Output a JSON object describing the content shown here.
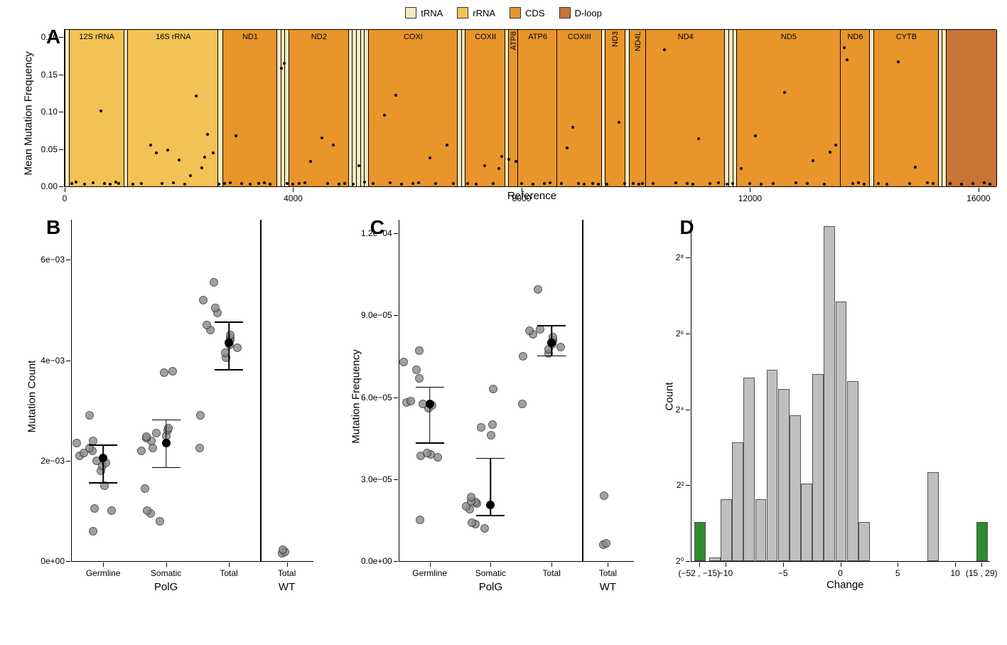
{
  "colors": {
    "tRNA": "#f9e9c3",
    "rRNA": "#f2c255",
    "CDS": "#e8952c",
    "Dloop": "#c77435",
    "gray_bar": "#bfbfbf",
    "green_bar": "#2e8b2e",
    "point_fill": "#8a8a8a"
  },
  "legend": [
    {
      "label": "tRNA",
      "color": "#f9e9c3"
    },
    {
      "label": "rRNA",
      "color": "#f2c255"
    },
    {
      "label": "CDS",
      "color": "#e8952c"
    },
    {
      "label": "D-loop",
      "color": "#c77435"
    }
  ],
  "panelA": {
    "label": "A",
    "ylab": "Mean Mutation Frequency",
    "xlab": "Reference",
    "xlim": [
      0,
      16300
    ],
    "ylim": [
      0,
      0.21
    ],
    "xticks": [
      0,
      4000,
      8000,
      12000,
      16000
    ],
    "yticks": [
      0.0,
      0.05,
      0.1,
      0.15,
      0.2
    ],
    "regions": [
      {
        "start": 0,
        "end": 70,
        "type": "tRNA",
        "label": ""
      },
      {
        "start": 70,
        "end": 1030,
        "type": "rRNA",
        "label": "12S rRNA"
      },
      {
        "start": 1030,
        "end": 1100,
        "type": "tRNA",
        "label": ""
      },
      {
        "start": 1100,
        "end": 2680,
        "type": "rRNA",
        "label": "16S rRNA"
      },
      {
        "start": 2680,
        "end": 2760,
        "type": "tRNA",
        "label": ""
      },
      {
        "start": 2760,
        "end": 3710,
        "type": "CDS",
        "label": "ND1"
      },
      {
        "start": 3710,
        "end": 3780,
        "type": "tRNA",
        "label": ""
      },
      {
        "start": 3780,
        "end": 3850,
        "type": "tRNA",
        "label": ""
      },
      {
        "start": 3850,
        "end": 3920,
        "type": "tRNA",
        "label": ""
      },
      {
        "start": 3920,
        "end": 4960,
        "type": "CDS",
        "label": "ND2"
      },
      {
        "start": 4960,
        "end": 5030,
        "type": "tRNA",
        "label": ""
      },
      {
        "start": 5030,
        "end": 5100,
        "type": "tRNA",
        "label": ""
      },
      {
        "start": 5100,
        "end": 5170,
        "type": "tRNA",
        "label": ""
      },
      {
        "start": 5170,
        "end": 5240,
        "type": "tRNA",
        "label": ""
      },
      {
        "start": 5240,
        "end": 5310,
        "type": "tRNA",
        "label": ""
      },
      {
        "start": 5310,
        "end": 6870,
        "type": "CDS",
        "label": "COXI"
      },
      {
        "start": 6870,
        "end": 6940,
        "type": "tRNA",
        "label": ""
      },
      {
        "start": 6940,
        "end": 7010,
        "type": "tRNA",
        "label": ""
      },
      {
        "start": 7010,
        "end": 7700,
        "type": "CDS",
        "label": "COXII"
      },
      {
        "start": 7700,
        "end": 7770,
        "type": "tRNA",
        "label": ""
      },
      {
        "start": 7770,
        "end": 7930,
        "type": "CDS",
        "label": "ATP8",
        "vert": true
      },
      {
        "start": 7930,
        "end": 8610,
        "type": "CDS",
        "label": "ATP6"
      },
      {
        "start": 8610,
        "end": 9390,
        "type": "CDS",
        "label": "COXIII"
      },
      {
        "start": 9390,
        "end": 9460,
        "type": "tRNA",
        "label": ""
      },
      {
        "start": 9460,
        "end": 9810,
        "type": "CDS",
        "label": "ND3",
        "vert": true
      },
      {
        "start": 9810,
        "end": 9880,
        "type": "tRNA",
        "label": ""
      },
      {
        "start": 9880,
        "end": 10170,
        "type": "CDS",
        "label": "ND4L",
        "vert": true
      },
      {
        "start": 10170,
        "end": 11550,
        "type": "CDS",
        "label": "ND4"
      },
      {
        "start": 11550,
        "end": 11620,
        "type": "tRNA",
        "label": ""
      },
      {
        "start": 11620,
        "end": 11690,
        "type": "tRNA",
        "label": ""
      },
      {
        "start": 11690,
        "end": 11760,
        "type": "tRNA",
        "label": ""
      },
      {
        "start": 11760,
        "end": 13570,
        "type": "CDS",
        "label": "ND5"
      },
      {
        "start": 13570,
        "end": 14090,
        "type": "CDS",
        "label": "ND6"
      },
      {
        "start": 14090,
        "end": 14160,
        "type": "tRNA",
        "label": ""
      },
      {
        "start": 14160,
        "end": 15290,
        "type": "CDS",
        "label": "CYTB"
      },
      {
        "start": 15290,
        "end": 15360,
        "type": "tRNA",
        "label": ""
      },
      {
        "start": 15360,
        "end": 15430,
        "type": "tRNA",
        "label": ""
      },
      {
        "start": 15430,
        "end": 16300,
        "type": "Dloop",
        "label": ""
      }
    ],
    "points": [
      [
        120,
        0.004
      ],
      [
        200,
        0.006
      ],
      [
        350,
        0.003
      ],
      [
        500,
        0.005
      ],
      [
        630,
        0.101
      ],
      [
        700,
        0.004
      ],
      [
        800,
        0.003
      ],
      [
        900,
        0.006
      ],
      [
        950,
        0.004
      ],
      [
        1200,
        0.003
      ],
      [
        1350,
        0.004
      ],
      [
        1500,
        0.055
      ],
      [
        1600,
        0.045
      ],
      [
        1700,
        0.004
      ],
      [
        1800,
        0.049
      ],
      [
        1900,
        0.005
      ],
      [
        2000,
        0.035
      ],
      [
        2100,
        0.003
      ],
      [
        2200,
        0.014
      ],
      [
        2300,
        0.121
      ],
      [
        2400,
        0.025
      ],
      [
        2450,
        0.039
      ],
      [
        2500,
        0.07
      ],
      [
        2600,
        0.045
      ],
      [
        2700,
        0.003
      ],
      [
        2800,
        0.004
      ],
      [
        2900,
        0.005
      ],
      [
        3000,
        0.068
      ],
      [
        3100,
        0.004
      ],
      [
        3250,
        0.003
      ],
      [
        3400,
        0.004
      ],
      [
        3500,
        0.005
      ],
      [
        3600,
        0.003
      ],
      [
        3800,
        0.158
      ],
      [
        3850,
        0.165
      ],
      [
        3900,
        0.004
      ],
      [
        4000,
        0.003
      ],
      [
        4100,
        0.004
      ],
      [
        4200,
        0.005
      ],
      [
        4300,
        0.033
      ],
      [
        4500,
        0.065
      ],
      [
        4600,
        0.004
      ],
      [
        4700,
        0.055
      ],
      [
        4800,
        0.003
      ],
      [
        4900,
        0.004
      ],
      [
        5050,
        0.003
      ],
      [
        5150,
        0.028
      ],
      [
        5250,
        0.006
      ],
      [
        5400,
        0.004
      ],
      [
        5600,
        0.095
      ],
      [
        5700,
        0.005
      ],
      [
        5800,
        0.122
      ],
      [
        5900,
        0.003
      ],
      [
        6100,
        0.004
      ],
      [
        6200,
        0.005
      ],
      [
        6400,
        0.038
      ],
      [
        6500,
        0.004
      ],
      [
        6700,
        0.055
      ],
      [
        6800,
        0.004
      ],
      [
        7050,
        0.004
      ],
      [
        7200,
        0.003
      ],
      [
        7350,
        0.028
      ],
      [
        7500,
        0.004
      ],
      [
        7600,
        0.024
      ],
      [
        7650,
        0.04
      ],
      [
        7780,
        0.036
      ],
      [
        7900,
        0.033
      ],
      [
        8000,
        0.004
      ],
      [
        8200,
        0.003
      ],
      [
        8400,
        0.004
      ],
      [
        8500,
        0.005
      ],
      [
        8700,
        0.004
      ],
      [
        8800,
        0.052
      ],
      [
        8900,
        0.079
      ],
      [
        9000,
        0.004
      ],
      [
        9100,
        0.003
      ],
      [
        9250,
        0.004
      ],
      [
        9350,
        0.003
      ],
      [
        9500,
        0.003
      ],
      [
        9700,
        0.086
      ],
      [
        9800,
        0.004
      ],
      [
        9950,
        0.004
      ],
      [
        10050,
        0.003
      ],
      [
        10120,
        0.004
      ],
      [
        10300,
        0.004
      ],
      [
        10500,
        0.183
      ],
      [
        10700,
        0.005
      ],
      [
        10900,
        0.004
      ],
      [
        11000,
        0.003
      ],
      [
        11100,
        0.064
      ],
      [
        11300,
        0.004
      ],
      [
        11450,
        0.005
      ],
      [
        11600,
        0.003
      ],
      [
        11700,
        0.004
      ],
      [
        11850,
        0.024
      ],
      [
        12000,
        0.004
      ],
      [
        12100,
        0.068
      ],
      [
        12200,
        0.003
      ],
      [
        12400,
        0.004
      ],
      [
        12600,
        0.126
      ],
      [
        12800,
        0.005
      ],
      [
        13000,
        0.004
      ],
      [
        13100,
        0.034
      ],
      [
        13300,
        0.003
      ],
      [
        13400,
        0.046
      ],
      [
        13500,
        0.055
      ],
      [
        13650,
        0.186
      ],
      [
        13700,
        0.17
      ],
      [
        13800,
        0.004
      ],
      [
        13900,
        0.005
      ],
      [
        14000,
        0.003
      ],
      [
        14250,
        0.004
      ],
      [
        14400,
        0.003
      ],
      [
        14600,
        0.167
      ],
      [
        14800,
        0.004
      ],
      [
        14900,
        0.026
      ],
      [
        15100,
        0.005
      ],
      [
        15200,
        0.004
      ],
      [
        15500,
        0.004
      ],
      [
        15700,
        0.003
      ],
      [
        15900,
        0.004
      ],
      [
        16100,
        0.005
      ],
      [
        16200,
        0.003
      ]
    ]
  },
  "panelB": {
    "label": "B",
    "ylab": "Mutation Count",
    "ylim": [
      0,
      0.0068
    ],
    "yticks": [
      [
        "0e+00",
        0
      ],
      [
        "2e−03",
        0.002
      ],
      [
        "4e−03",
        0.004
      ],
      [
        "6e−03",
        0.006
      ]
    ],
    "facets": [
      {
        "label": "PolG",
        "groups": [
          "Germline",
          "Somatic",
          "Total"
        ]
      },
      {
        "label": "WT",
        "groups": [
          "Total"
        ]
      }
    ],
    "groups": [
      {
        "name": "Germline",
        "x": 0,
        "mean": 0.00205,
        "lo": 0.00155,
        "hi": 0.0023,
        "pts": [
          0.0006,
          0.001,
          0.00105,
          0.0015,
          0.0018,
          0.0019,
          0.00195,
          0.002,
          0.0021,
          0.00215,
          0.0022,
          0.00225,
          0.00235,
          0.0024,
          0.0029
        ]
      },
      {
        "name": "Somatic",
        "x": 1,
        "mean": 0.00235,
        "lo": 0.00185,
        "hi": 0.0028,
        "pts": [
          0.0008,
          0.00095,
          0.001,
          0.00145,
          0.0022,
          0.00225,
          0.0024,
          0.00245,
          0.00248,
          0.0025,
          0.00255,
          0.0026,
          0.00265,
          0.00375,
          0.00378
        ]
      },
      {
        "name": "Total",
        "x": 2,
        "mean": 0.00435,
        "lo": 0.0038,
        "hi": 0.00475,
        "pts": [
          0.00225,
          0.0029,
          0.00405,
          0.00415,
          0.00425,
          0.0043,
          0.0044,
          0.00445,
          0.0045,
          0.0046,
          0.0047,
          0.00495,
          0.00505,
          0.0052,
          0.00555
        ]
      },
      {
        "name": "Total",
        "x": 3,
        "pts": [
          0.00015,
          0.00018,
          0.00022
        ]
      }
    ]
  },
  "panelC": {
    "label": "C",
    "ylab": "Mutation Frequency",
    "ylim": [
      0,
      0.000125
    ],
    "yticks": [
      [
        "0.0e+00",
        0
      ],
      [
        "3.0e−05",
        3e-05
      ],
      [
        "6.0e−05",
        6e-05
      ],
      [
        "9.0e−05",
        9e-05
      ],
      [
        "1.2e−04",
        0.00012
      ]
    ],
    "facets": [
      {
        "label": "PolG",
        "groups": [
          "Germline",
          "Somatic",
          "Total"
        ]
      },
      {
        "label": "WT",
        "groups": [
          "Total"
        ]
      }
    ],
    "groups": [
      {
        "name": "Germline",
        "x": 0,
        "mean": 5.75e-05,
        "lo": 4.3e-05,
        "hi": 6.35e-05,
        "pts": [
          1.5e-05,
          3.8e-05,
          3.85e-05,
          3.9e-05,
          3.95e-05,
          5.6e-05,
          5.7e-05,
          5.75e-05,
          5.8e-05,
          5.85e-05,
          6.7e-05,
          7e-05,
          7.3e-05,
          7.7e-05
        ]
      },
      {
        "name": "Somatic",
        "x": 1,
        "mean": 2.05e-05,
        "lo": 1.65e-05,
        "hi": 3.75e-05,
        "pts": [
          1.2e-05,
          1.35e-05,
          1.4e-05,
          1.9e-05,
          2e-05,
          2.1e-05,
          2.15e-05,
          2.2e-05,
          2.35e-05,
          4.6e-05,
          4.9e-05,
          5e-05,
          6.3e-05
        ]
      },
      {
        "name": "Total",
        "x": 2,
        "mean": 8e-05,
        "lo": 7.5e-05,
        "hi": 8.6e-05,
        "pts": [
          5.75e-05,
          7.5e-05,
          7.6e-05,
          7.75e-05,
          7.85e-05,
          7.95e-05,
          8.05e-05,
          8.1e-05,
          8.2e-05,
          8.3e-05,
          8.45e-05,
          8.5e-05,
          9.95e-05
        ]
      },
      {
        "name": "Total",
        "x": 3,
        "pts": [
          6e-06,
          6.5e-06,
          2.4e-05
        ]
      }
    ]
  },
  "panelD": {
    "label": "D",
    "ylab": "Count",
    "xlab": "Change",
    "ylim_log2": [
      0,
      9
    ],
    "yticks": [
      [
        "2⁰",
        0
      ],
      [
        "2²",
        2
      ],
      [
        "2⁴",
        4
      ],
      [
        "2⁶",
        6
      ],
      [
        "2⁸",
        8
      ]
    ],
    "xlim": [
      -13,
      13
    ],
    "xticks": [
      [
        "(−52 , −15)",
        -12.3
      ],
      [
        "−10",
        -10
      ],
      [
        "−5",
        -5
      ],
      [
        "0",
        0
      ],
      [
        "5",
        5
      ],
      [
        "10",
        10
      ],
      [
        "(15 , 29)",
        12.3
      ]
    ],
    "bars": [
      {
        "x": -12.3,
        "h": 1,
        "color": "green"
      },
      {
        "x": -11,
        "h": 0.05,
        "color": "gray"
      },
      {
        "x": -10,
        "h": 1.6,
        "color": "gray"
      },
      {
        "x": -9,
        "h": 3.1,
        "color": "gray"
      },
      {
        "x": -8,
        "h": 4.8,
        "color": "gray"
      },
      {
        "x": -7,
        "h": 1.6,
        "color": "gray"
      },
      {
        "x": -6,
        "h": 5.0,
        "color": "gray"
      },
      {
        "x": -5,
        "h": 4.5,
        "color": "gray"
      },
      {
        "x": -4,
        "h": 3.8,
        "color": "gray"
      },
      {
        "x": -3,
        "h": 2.0,
        "color": "gray"
      },
      {
        "x": -2,
        "h": 4.9,
        "color": "gray"
      },
      {
        "x": -1,
        "h": 8.8,
        "color": "gray"
      },
      {
        "x": 0,
        "h": 6.8,
        "color": "gray"
      },
      {
        "x": 1,
        "h": 4.7,
        "color": "gray"
      },
      {
        "x": 2,
        "h": 1.0,
        "color": "gray"
      },
      {
        "x": 8,
        "h": 2.3,
        "color": "gray"
      },
      {
        "x": 12.3,
        "h": 1,
        "color": "green"
      }
    ]
  }
}
